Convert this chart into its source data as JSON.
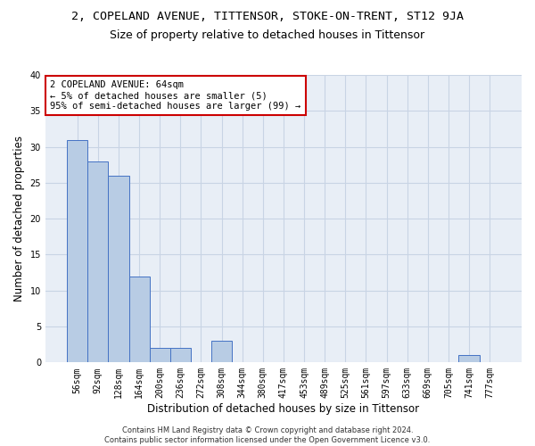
{
  "title_line1": "2, COPELAND AVENUE, TITTENSOR, STOKE-ON-TRENT, ST12 9JA",
  "title_line2": "Size of property relative to detached houses in Tittensor",
  "xlabel": "Distribution of detached houses by size in Tittensor",
  "ylabel": "Number of detached properties",
  "bar_values": [
    31,
    28,
    26,
    12,
    2,
    2,
    0,
    3,
    0,
    0,
    0,
    0,
    0,
    0,
    0,
    0,
    0,
    0,
    0,
    1,
    0
  ],
  "categories": [
    "56sqm",
    "92sqm",
    "128sqm",
    "164sqm",
    "200sqm",
    "236sqm",
    "272sqm",
    "308sqm",
    "344sqm",
    "380sqm",
    "417sqm",
    "453sqm",
    "489sqm",
    "525sqm",
    "561sqm",
    "597sqm",
    "633sqm",
    "669sqm",
    "705sqm",
    "741sqm",
    "777sqm"
  ],
  "bar_color": "#b8cce4",
  "bar_edge_color": "#4472c4",
  "annotation_text": "2 COPELAND AVENUE: 64sqm\n← 5% of detached houses are smaller (5)\n95% of semi-detached houses are larger (99) →",
  "annotation_box_color": "#ffffff",
  "annotation_box_edge": "#cc0000",
  "grid_color": "#c8d4e4",
  "background_color": "#e8eef6",
  "ylim": [
    0,
    40
  ],
  "yticks": [
    0,
    5,
    10,
    15,
    20,
    25,
    30,
    35,
    40
  ],
  "footer_line1": "Contains HM Land Registry data © Crown copyright and database right 2024.",
  "footer_line2": "Contains public sector information licensed under the Open Government Licence v3.0.",
  "title_fontsize": 9.5,
  "subtitle_fontsize": 9,
  "label_fontsize": 8.5,
  "tick_fontsize": 7,
  "annotation_fontsize": 7.5,
  "footer_fontsize": 6
}
